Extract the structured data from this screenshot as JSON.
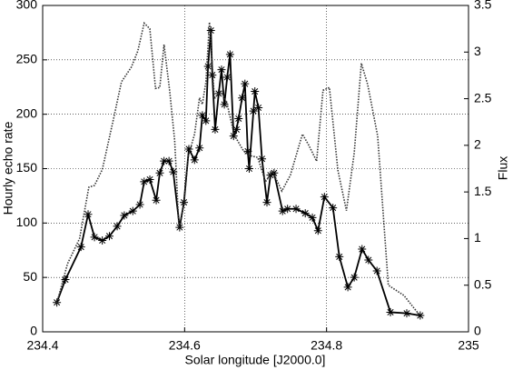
{
  "chart_data": {
    "type": "line",
    "xlabel": "Solar longitude [J2000.0]",
    "ylabel": "Hourly echo rate",
    "y2label": "Flux",
    "xlim": [
      234.4,
      235
    ],
    "xticks": [
      234.4,
      234.6,
      234.8,
      235
    ],
    "ylim": [
      0,
      300
    ],
    "yticks": [
      0,
      50,
      100,
      150,
      200,
      250,
      300
    ],
    "y2lim": [
      0,
      3.5
    ],
    "y2ticks": [
      0,
      0.5,
      1,
      1.5,
      2,
      2.5,
      3,
      3.5
    ],
    "grid": true,
    "series": [
      {
        "color": "#000000",
        "marker": "asterisk",
        "dash": "solid",
        "x": [
          234.42,
          234.432,
          234.454,
          234.464,
          234.473,
          234.484,
          234.494,
          234.505,
          234.515,
          234.527,
          234.537,
          234.543,
          234.551,
          234.56,
          234.565,
          234.571,
          234.578,
          234.584,
          234.593,
          234.599,
          234.606,
          234.614,
          234.621,
          234.625,
          234.63,
          234.633,
          234.637,
          234.639,
          234.643,
          234.648,
          234.652,
          234.656,
          234.66,
          234.664,
          234.669,
          234.673,
          234.676,
          234.681,
          234.685,
          234.689,
          234.691,
          234.697,
          234.699,
          234.704,
          234.709,
          234.716,
          234.721,
          234.726,
          234.738,
          234.745,
          234.757,
          234.77,
          234.78,
          234.788,
          234.797,
          234.809,
          234.818,
          234.83,
          234.839,
          234.85,
          234.859,
          234.871,
          234.89,
          234.913,
          234.932
        ],
        "values": [
          27,
          48,
          78,
          108,
          87,
          84,
          88,
          97,
          107,
          111,
          117,
          138,
          140,
          121,
          146,
          157,
          157,
          147,
          96,
          119,
          168,
          158,
          169,
          199,
          194,
          244,
          277,
          236,
          186,
          219,
          241,
          209,
          234,
          255,
          180,
          186,
          196,
          215,
          228,
          166,
          150,
          203,
          221,
          206,
          159,
          119,
          144,
          146,
          111,
          113,
          113,
          109,
          105,
          93,
          124,
          114,
          69,
          41,
          50,
          76,
          66,
          56,
          18,
          17,
          15
        ]
      },
      {
        "color": "#333333",
        "marker": "none",
        "dash": "dotted",
        "axis": "y2",
        "x": [
          234.42,
          234.435,
          234.452,
          234.465,
          234.473,
          234.484,
          234.5,
          234.511,
          234.525,
          234.534,
          234.543,
          234.551,
          234.559,
          234.565,
          234.571,
          234.579,
          234.586,
          234.592,
          234.599,
          234.605,
          234.614,
          234.621,
          234.625,
          234.63,
          234.635,
          234.642,
          234.651,
          234.66,
          234.67,
          234.683,
          234.692,
          234.703,
          234.714,
          234.724,
          234.737,
          234.749,
          234.766,
          234.775,
          234.786,
          234.795,
          234.804,
          234.816,
          234.828,
          234.839,
          234.849,
          234.858,
          234.872,
          234.887,
          234.909,
          234.931
        ],
        "values": [
          0.31,
          0.73,
          1.0,
          1.55,
          1.57,
          1.74,
          2.29,
          2.68,
          2.84,
          3.01,
          3.31,
          3.25,
          2.61,
          2.62,
          3.08,
          2.58,
          2.05,
          1.12,
          1.36,
          1.88,
          2.12,
          2.51,
          2.44,
          2.68,
          3.32,
          2.5,
          2.59,
          2.44,
          2.11,
          1.94,
          1.89,
          1.87,
          1.61,
          1.72,
          1.51,
          1.68,
          2.12,
          2.0,
          1.83,
          2.59,
          2.62,
          1.73,
          1.3,
          1.92,
          2.88,
          2.65,
          2.1,
          0.5,
          0.39,
          0.18
        ]
      }
    ]
  }
}
